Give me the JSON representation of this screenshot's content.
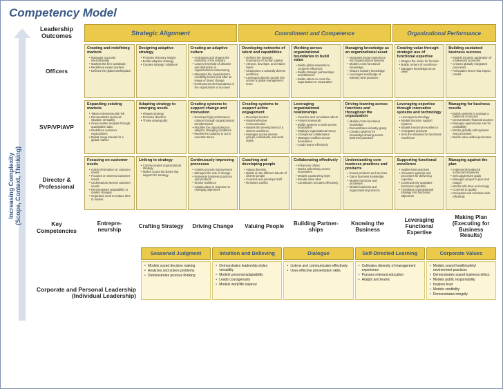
{
  "title": "Competency Model",
  "yaxis": {
    "line1": "Increasing Complexity",
    "line2": "(Scope, Context, Thinking)"
  },
  "bands": {
    "leadership": "Leadership Outcomes",
    "g1": "Strategic Alignment",
    "g2": "Commitment and Competence",
    "g3": "Organizational Performance"
  },
  "rows": [
    {
      "label": "Officers",
      "cells": [
        {
          "h": "Creating and redefining markets",
          "b": [
            "Manages accounts internationally",
            "Markets the firm worldwide",
            "Redefines extant markets",
            "Defines the global marketplace"
          ]
        },
        {
          "h": "Designing adaptive strategy",
          "b": [
            "Provides visionary insight",
            "Builds adaptive strategy",
            "Creates strategic initiatives"
          ]
        },
        {
          "h": "Creating an adaptive culture",
          "b": [
            "Anticipates and shapes the evolution of the industry",
            "Lowers threshold of disorder and distraction in organizational restructuring",
            "Maintains the organization's credibility before and after an image or brand change",
            "Restructures the boundaries of the organization to succeed"
          ]
        },
        {
          "h": "Developing networks of talent and capabilities",
          "b": [
            "Defines the strategic importance of human capital",
            "Attracts, develops, and retains talent",
            "Champions a culturally diverse workforce",
            "Leverages diverse people ties across a global management team"
          ]
        },
        {
          "h": "Working across organizational boundaries to build value",
          "b": [
            "Builds global networks to compete effectively",
            "Builds strategic partnerships and alliances",
            "Builds others to cross the organization or corporation"
          ]
        },
        {
          "h": "Managing knowledge as an organizational asset",
          "b": [
            "Integrates broad experience into organizational systems",
            "Models cross-functional knowledge",
            "Shapes industry knowledge",
            "Leverages knowledge of industry best practices"
          ]
        },
        {
          "h": "Creating value through strategic use of functional expertise",
          "b": [
            "Shapes the vision for function",
            "Builds centers of excellence",
            "Manages knowledge as an asset"
          ]
        },
        {
          "h": "Building sustained business success",
          "b": [
            "Models dynamic application of a balanced scorecard",
            "Creates globally integrated processes",
            "Anticipates forces that impact results"
          ]
        }
      ]
    },
    {
      "label": "SVP/VP/AVP",
      "cells": [
        {
          "h": "Expanding existing markets",
          "b": [
            "Takes entrepreneurial risk",
            "Demonstrates business situation versatility",
            "Gives market analysis through quantitative data",
            "Redefines customer expectations",
            "Builds mega-brands for a global market"
          ]
        },
        {
          "h": "Adapting strategy to emerging needs",
          "b": [
            "Shapes strategy",
            "Provides direction",
            "Thinks strategically"
          ]
        },
        {
          "h": "Creating systems to support change and innovation",
          "b": [
            "Develops high-performance cultures through organizational transformation",
            "Modifies the organization to adapt to changing conditions",
            "Models the capacity to act in uncertain times"
          ]
        },
        {
          "h": "Creating systems to support active engagement",
          "b": [
            "Develops leaders",
            "Models effective communication",
            "Models the development of a diverse workforce",
            "Manages across diverse groups, individuals, and work styles"
          ]
        },
        {
          "h": "Leveraging organizational relationships",
          "b": [
            "Coaches and conciliates others",
            "Fosters teamwork",
            "Builds systems to work across boundaries",
            "Displays organizational savvy",
            "Champions collaboration",
            "Manages conflicts across boundaries",
            "Leads teams effectively"
          ]
        },
        {
          "h": "Driving learning across functions and throughout the organization",
          "b": [
            "Models cross-functional knowledge",
            "Demonstrates industry grasp",
            "Creates systems for knowledge-sharing across business practices"
          ]
        },
        {
          "h": "Leveraging expertise through innovative systems and technology",
          "b": [
            "Leverages technology",
            "Models decision support systems",
            "Models functional excellence",
            "Anticipates products",
            "Sets the standard for functional excellence"
          ]
        },
        {
          "h": "Managing for business results",
          "b": [
            "Builds systems to manage a balanced scorecard",
            "Demonstrates financial acumen",
            "Manages against plan and for profitability",
            "Works globally with systems and processes",
            "Builds value-added processes"
          ]
        }
      ]
    },
    {
      "label": "Director & Professional",
      "cells": [
        {
          "h": "Focusing on customer needs",
          "b": [
            "Gains information on customer needs",
            "Focuses on external customer needs",
            "Understands internal customer needs",
            "Demonstrates adaptability to market changes",
            "Organizes work to reduce time to market"
          ]
        },
        {
          "h": "Linking to strategy",
          "b": [
            "Communicates organizational strategy",
            "Makes sound decisions that support the strategy"
          ]
        },
        {
          "h": "Continuously improving processes",
          "b": [
            "Guides process improvement",
            "Manages the rate of change",
            "Reinvents business practices and products",
            "Shows resilience",
            "Adapts plans in response to changing objectives"
          ]
        },
        {
          "h": "Coaching and developing people",
          "b": [
            "Values diversity",
            "Builds on the different talents of diverse people",
            "Coaches and develops staff",
            "Resolves conflict"
          ]
        },
        {
          "h": "Collaborating effectively",
          "b": [
            "Influences others",
            "Works collectively across boundaries",
            "Models a partnering style",
            "Breaks down silos",
            "Contributes to teams effectively"
          ]
        },
        {
          "h": "Understanding core business practices and products",
          "b": [
            "Knows products and services",
            "Gains business knowledge",
            "Models functions and processes",
            "Models business and organizational practices"
          ]
        },
        {
          "h": "Supporting functional excellence",
          "b": [
            "Applies best practices",
            "Innovates systems and processes for delivering expertise",
            "Constructively upgrades functional expertise",
            "Translates organizational strategy into functional objectives"
          ]
        },
        {
          "h": "Managing against the plan",
          "b": [
            "Implements balanced scorecard measures",
            "Sets aggressive goals",
            "Manages project to plan and budget",
            "Works with drive and energy",
            "Commits to quality",
            "Delegates and monitors work efficiently"
          ]
        }
      ]
    }
  ],
  "keyCompetencies": {
    "label": "Key Competencies",
    "items": [
      "Entrepre- neurship",
      "Crafting Strategy",
      "Driving Change",
      "Valuing People",
      "Building Partner- ships",
      "Knowing the Business",
      "Leveraging Functional Expertise",
      "Making Plan (Executing for Business Results)"
    ]
  },
  "bottom": {
    "left": "Corporate and Personal Leadership\n(Individual Leadership)",
    "headers": [
      "Seasoned Judgment",
      "Intuition and Believing",
      "Dialogue",
      "Self-Directed Learning",
      "Corporate Values"
    ],
    "cells": [
      [
        "Models sound decision making",
        "Analyzes and solves problems",
        "Demonstrates process thinking"
      ],
      [
        "Demonstrates leadership styles versatility",
        "Models personal adaptability",
        "Leads courageously",
        "Models work/life balance"
      ],
      [
        "Listens and communicates effectively",
        "Uses effective presentation skills"
      ],
      [
        "Cultivates diversity of management experience",
        "Pursues relevant education",
        "Adapts and learns"
      ],
      [
        "Models sound health/safety/ environment practices",
        "Demonstrates sound business ethics",
        "Models public responsibility",
        "Inspires trust",
        "Models credibility",
        "Demonstrates integrity"
      ]
    ]
  },
  "colors": {
    "brand": "#3b5985",
    "bandFill": "#eac94b",
    "bandBorder": "#b59a2a",
    "cellFill": "#f4eecb",
    "cellBorder": "#bba95a",
    "lightFill": "#fcf6d7",
    "lightBorder": "#d9c97a",
    "arrow": "#d7dfea"
  }
}
